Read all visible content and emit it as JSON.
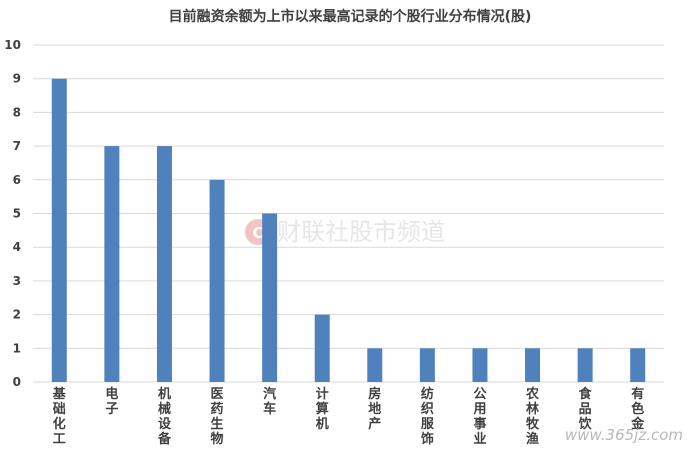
{
  "chart_data": {
    "type": "bar",
    "title": "目前融资余额为上市以来最高记录的个股行业分布情况(股)",
    "categories": [
      "基础化工",
      "电子",
      "机械设备",
      "医药生物",
      "汽车",
      "计算机",
      "房地产",
      "纺织服饰",
      "公用事业",
      "农林牧渔",
      "食品饮",
      "有色金"
    ],
    "values": [
      9,
      7,
      7,
      6,
      5,
      2,
      1,
      1,
      1,
      1,
      1,
      1
    ],
    "ylim": [
      0,
      10
    ],
    "yticks": [
      0,
      1,
      2,
      3,
      4,
      5,
      6,
      7,
      8,
      9,
      10
    ],
    "xlabel": "",
    "ylabel": "",
    "grid": true,
    "bar_color": "#4f81bd"
  },
  "watermark": {
    "text": "财联社股市频道",
    "logo_color": "#f2c4c4"
  },
  "corner_watermark": "www.365jz.com"
}
